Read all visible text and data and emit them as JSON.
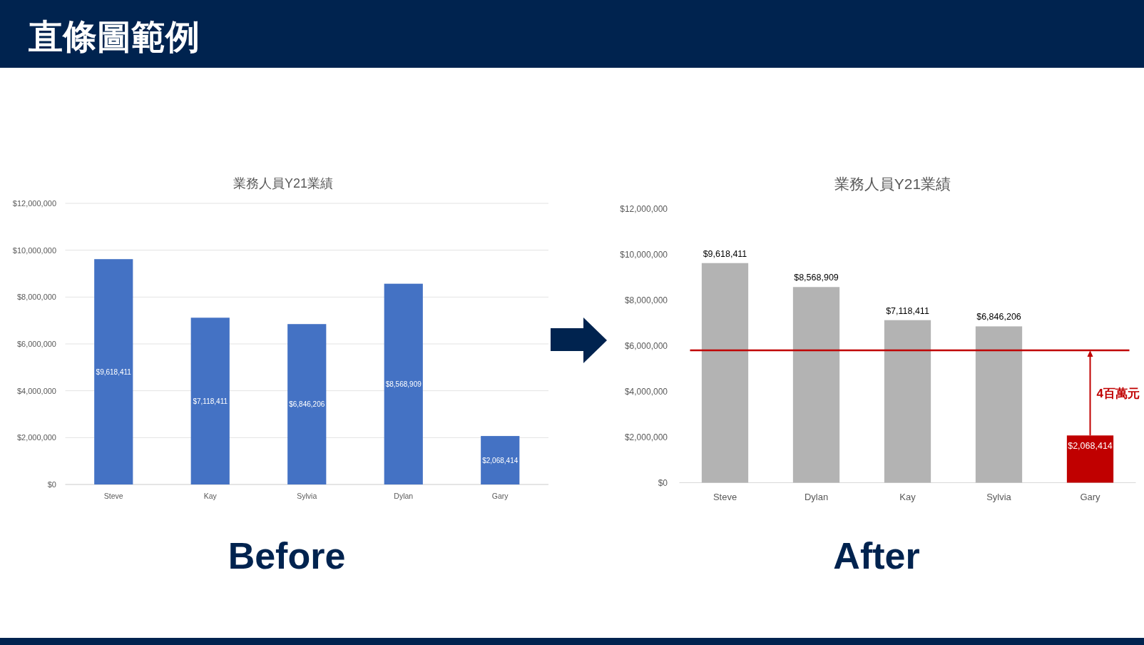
{
  "chart_data": [
    {
      "type": "bar",
      "title": "業務人員Y21業績",
      "categories": [
        "Steve",
        "Kay",
        "Sylvia",
        "Dylan",
        "Gary"
      ],
      "values": [
        9618411,
        7118411,
        6846206,
        8568909,
        2068414
      ],
      "color": "#4472c4",
      "value_labels": [
        "$9,618,411",
        "$7,118,411",
        "$6,846,206",
        "$8,568,909",
        "$2,068,414"
      ],
      "ylim": [
        0,
        12000000
      ],
      "yticks": [
        {
          "value": 0,
          "label": "$0"
        },
        {
          "value": 2000000,
          "label": "$2,000,000"
        },
        {
          "value": 4000000,
          "label": "$4,000,000"
        },
        {
          "value": 6000000,
          "label": "$6,000,000"
        },
        {
          "value": 8000000,
          "label": "$8,000,000"
        },
        {
          "value": 10000000,
          "label": "$10,000,000"
        },
        {
          "value": 12000000,
          "label": "$12,000,000"
        }
      ],
      "grid": "y",
      "annotations": [
        "直條圖範例",
        "Before"
      ]
    },
    {
      "type": "bar",
      "title": "業務人員Y21業績",
      "categories": [
        "Steve",
        "Dylan",
        "Kay",
        "Sylvia",
        "Gary"
      ],
      "values": [
        9618411,
        8568909,
        7118411,
        6846206,
        2068414
      ],
      "colors": [
        "#b3b3b3",
        "#b3b3b3",
        "#b3b3b3",
        "#b3b3b3",
        "#c00000"
      ],
      "value_labels": [
        "$9,618,411",
        "$8,568,909",
        "$7,118,411",
        "$6,846,206",
        "$2,068,414"
      ],
      "ylim": [
        0,
        12000000
      ],
      "yticks": [
        {
          "value": 0,
          "label": "$0"
        },
        {
          "value": 2000000,
          "label": "$2,000,000"
        },
        {
          "value": 4000000,
          "label": "$4,000,000"
        },
        {
          "value": 6000000,
          "label": "$6,000,000"
        },
        {
          "value": 8000000,
          "label": "$8,000,000"
        },
        {
          "value": 10000000,
          "label": "$10,000,000"
        },
        {
          "value": 12000000,
          "label": "$12,000,000"
        }
      ],
      "grid": false,
      "ref_lines": [
        {
          "axis": "y",
          "value": 5800000,
          "color": "#c00000",
          "line_style": "solid"
        }
      ],
      "annotations": [
        "4百萬元",
        "After"
      ]
    }
  ]
}
